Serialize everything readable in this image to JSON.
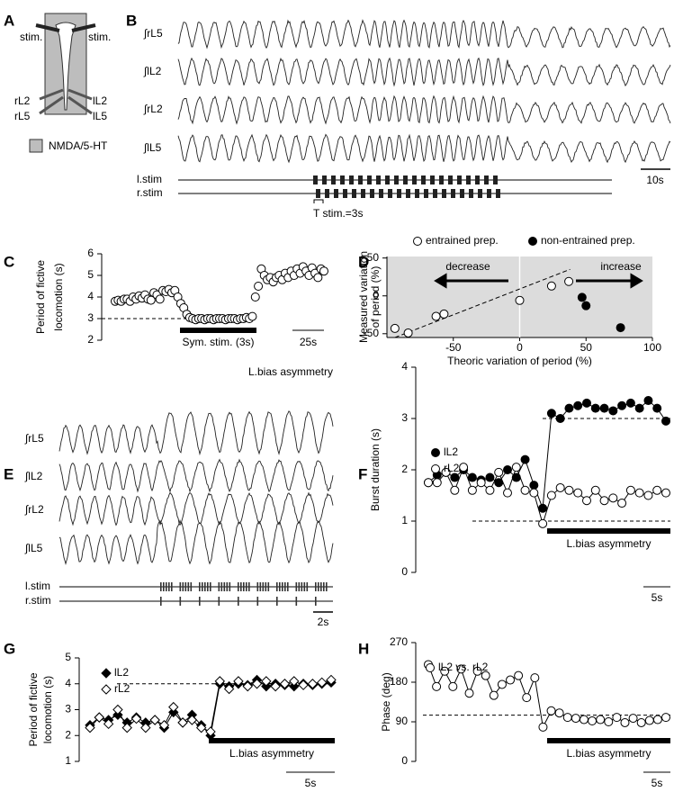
{
  "panel_labels": [
    "A",
    "B",
    "C",
    "D",
    "E",
    "F",
    "G",
    "H"
  ],
  "panel_a": {
    "labels": [
      "stim.",
      "stim.",
      "rL2",
      "lL2",
      "rL5",
      "lL5"
    ],
    "legend": "NMDA/5-HT"
  },
  "panel_b": {
    "traces": [
      "∫rL5",
      "∫lL2",
      "∫rL2",
      "∫lL5"
    ],
    "stim_labels": [
      "l.stim",
      "r.stim"
    ],
    "scale_bar": "10s",
    "period_note": "T stim.=3s"
  },
  "panel_e": {
    "title": "L.bias asymmetry",
    "traces": [
      "∫rL5",
      "∫lL2",
      "∫rL2",
      "∫lL5"
    ],
    "stim_labels": [
      "l.stim",
      "r.stim"
    ],
    "scale_bar": "2s"
  },
  "chart_data": [
    {
      "type": "scatter",
      "ylabel": [
        "Period of fictive",
        "locomotion (s)"
      ],
      "values": [
        3.8,
        3.85,
        3.8,
        3.9,
        3.9,
        3.8,
        4.0,
        3.9,
        4.05,
        3.95,
        4.1,
        3.9,
        3.85,
        4.2,
        4.1,
        3.9,
        4.3,
        4.25,
        4.35,
        4.2,
        4.3,
        4.0,
        3.7,
        3.5,
        3.2,
        3.05,
        3.0,
        2.95,
        3.0,
        3.0,
        2.95,
        3.0,
        3.0,
        2.95,
        3.0,
        3.0,
        3.0,
        2.95,
        3.0,
        3.0,
        3.0,
        2.95,
        3.0,
        3.0,
        3.05,
        3.0,
        3.1,
        4.0,
        4.5,
        5.3,
        5.0,
        4.8,
        4.9,
        4.7,
        4.9,
        5.0,
        4.8,
        5.1,
        4.9,
        5.2,
        5.0,
        5.3,
        5.1,
        5.4,
        5.2,
        5.0,
        5.35,
        5.1,
        4.9,
        5.3,
        5.2
      ],
      "ylim": [
        2,
        6
      ],
      "yticks": [
        2,
        3,
        4,
        5,
        6
      ],
      "reference_lines": [
        3
      ],
      "marker": "circle",
      "color": "#ffffff",
      "bar_label": "Sym. stim. (3s)",
      "scale_bar": "25s"
    },
    {
      "type": "scatter",
      "xlabel": "Theoric variation of period (%)",
      "ylabel": [
        "Measured variation",
        "of period (%)"
      ],
      "xlim": [
        -100,
        100
      ],
      "ylim": [
        -55,
        52
      ],
      "xticks": [
        -50,
        0,
        50,
        100
      ],
      "yticks": [
        -50,
        0,
        50
      ],
      "background": "#dcdcdc",
      "series": [
        {
          "name": "entrained prep.",
          "color": "#ffffff",
          "x": [
            -94,
            -84,
            -63,
            -57,
            0,
            24,
            37
          ],
          "values": [
            -43,
            -49,
            -27,
            -24,
            -6,
            13,
            19
          ]
        },
        {
          "name": "non-entrained prep.",
          "color": "#000000",
          "x": [
            47,
            50,
            76
          ],
          "values": [
            -2,
            -13,
            -42
          ]
        }
      ],
      "fit_line": {
        "x": [
          -94,
          38
        ],
        "values": [
          -55,
          35
        ]
      },
      "annotations": [
        "decrease",
        "increase"
      ]
    },
    {
      "type": "line",
      "ylabel": [
        "Burst duration (s)"
      ],
      "ylim": [
        0,
        4
      ],
      "yticks": [
        0,
        1,
        2,
        3,
        4
      ],
      "reference_lines": [
        3,
        1
      ],
      "series": [
        {
          "name": "lL2",
          "marker": "circle",
          "color": "#000000",
          "values": [
            1.75,
            1.9,
            1.95,
            1.85,
            2.0,
            1.85,
            1.8,
            1.85,
            1.75,
            2.0,
            1.85,
            2.2,
            1.7,
            1.25,
            3.1,
            3.0,
            3.2,
            3.25,
            3.3,
            3.2,
            3.2,
            3.15,
            3.25,
            3.3,
            3.2,
            3.35,
            3.2,
            2.95
          ]
        },
        {
          "name": "rL2",
          "marker": "circle",
          "color": "#ffffff",
          "values": [
            1.75,
            1.75,
            1.95,
            1.6,
            2.05,
            1.6,
            1.75,
            1.6,
            1.95,
            1.55,
            2.05,
            1.6,
            1.55,
            0.95,
            1.5,
            1.65,
            1.6,
            1.55,
            1.4,
            1.6,
            1.4,
            1.45,
            1.35,
            1.6,
            1.55,
            1.5,
            1.6,
            1.55
          ]
        }
      ],
      "bar_label": "L.bias asymmetry",
      "scale_bar": "5s"
    },
    {
      "type": "line",
      "ylabel": [
        "Period of fictive",
        "locomotion (s)"
      ],
      "ylim": [
        1,
        5
      ],
      "yticks": [
        1,
        2,
        3,
        4,
        5
      ],
      "reference_lines": [
        4
      ],
      "series": [
        {
          "name": "lL2",
          "marker": "diamond",
          "color": "#000000",
          "values": [
            2.4,
            2.7,
            2.6,
            2.8,
            2.5,
            2.7,
            2.5,
            2.6,
            2.3,
            2.9,
            2.5,
            2.8,
            2.4,
            2.0,
            4.0,
            3.9,
            4.0,
            3.95,
            4.15,
            3.9,
            4.0,
            3.95,
            3.9,
            4.0,
            3.95,
            4.0,
            4.05
          ]
        },
        {
          "name": "rL2",
          "marker": "diamond",
          "color": "#ffffff",
          "values": [
            2.3,
            2.7,
            2.45,
            3.0,
            2.3,
            2.65,
            2.3,
            2.6,
            2.4,
            3.1,
            2.5,
            2.6,
            2.3,
            2.15,
            4.1,
            3.8,
            4.1,
            3.9,
            4.0,
            4.1,
            3.9,
            4.0,
            4.1,
            3.95,
            4.0,
            4.05,
            4.15
          ]
        }
      ],
      "bar_label": "L.bias asymmetry",
      "scale_bar": "5s"
    },
    {
      "type": "line",
      "ylabel": [
        "Phase (deg)"
      ],
      "ylim": [
        0,
        270
      ],
      "yticks": [
        0,
        90,
        180,
        270
      ],
      "reference_lines": [
        105
      ],
      "series": [
        {
          "name": "lL2 vs. rL2",
          "marker": "circle",
          "color": "#ffffff",
          "values": [
            220,
            170,
            205,
            170,
            210,
            155,
            205,
            195,
            150,
            175,
            185,
            195,
            145,
            190,
            78,
            115,
            110,
            100,
            98,
            95,
            92,
            95,
            90,
            100,
            88,
            98,
            88,
            93,
            95,
            100
          ]
        }
      ],
      "bar_label": "L.bias asymmetry",
      "scale_bar": "5s"
    }
  ]
}
